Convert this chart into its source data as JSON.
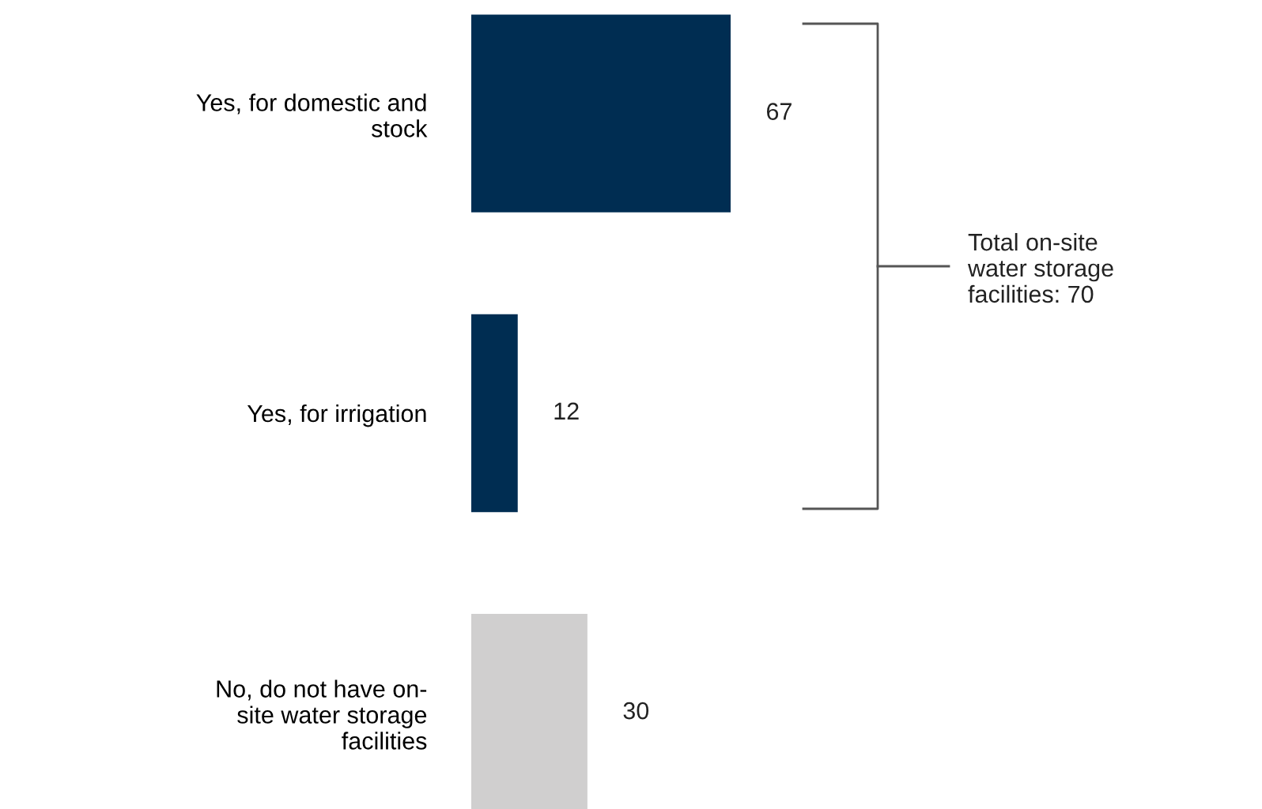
{
  "chart_data": {
    "type": "bar",
    "orientation": "horizontal",
    "categories": [
      "Yes, for domestic and\nstock",
      "Yes, for irrigation",
      "No, do not have on-\nsite water storage\nfacilities"
    ],
    "values": [
      67,
      12,
      30
    ],
    "colors": [
      "#002d52",
      "#002d52",
      "#d0cfcf"
    ],
    "data_labels": true,
    "annotations": [
      "Total on-site\nwater storage\nfacilities: 70"
    ]
  }
}
